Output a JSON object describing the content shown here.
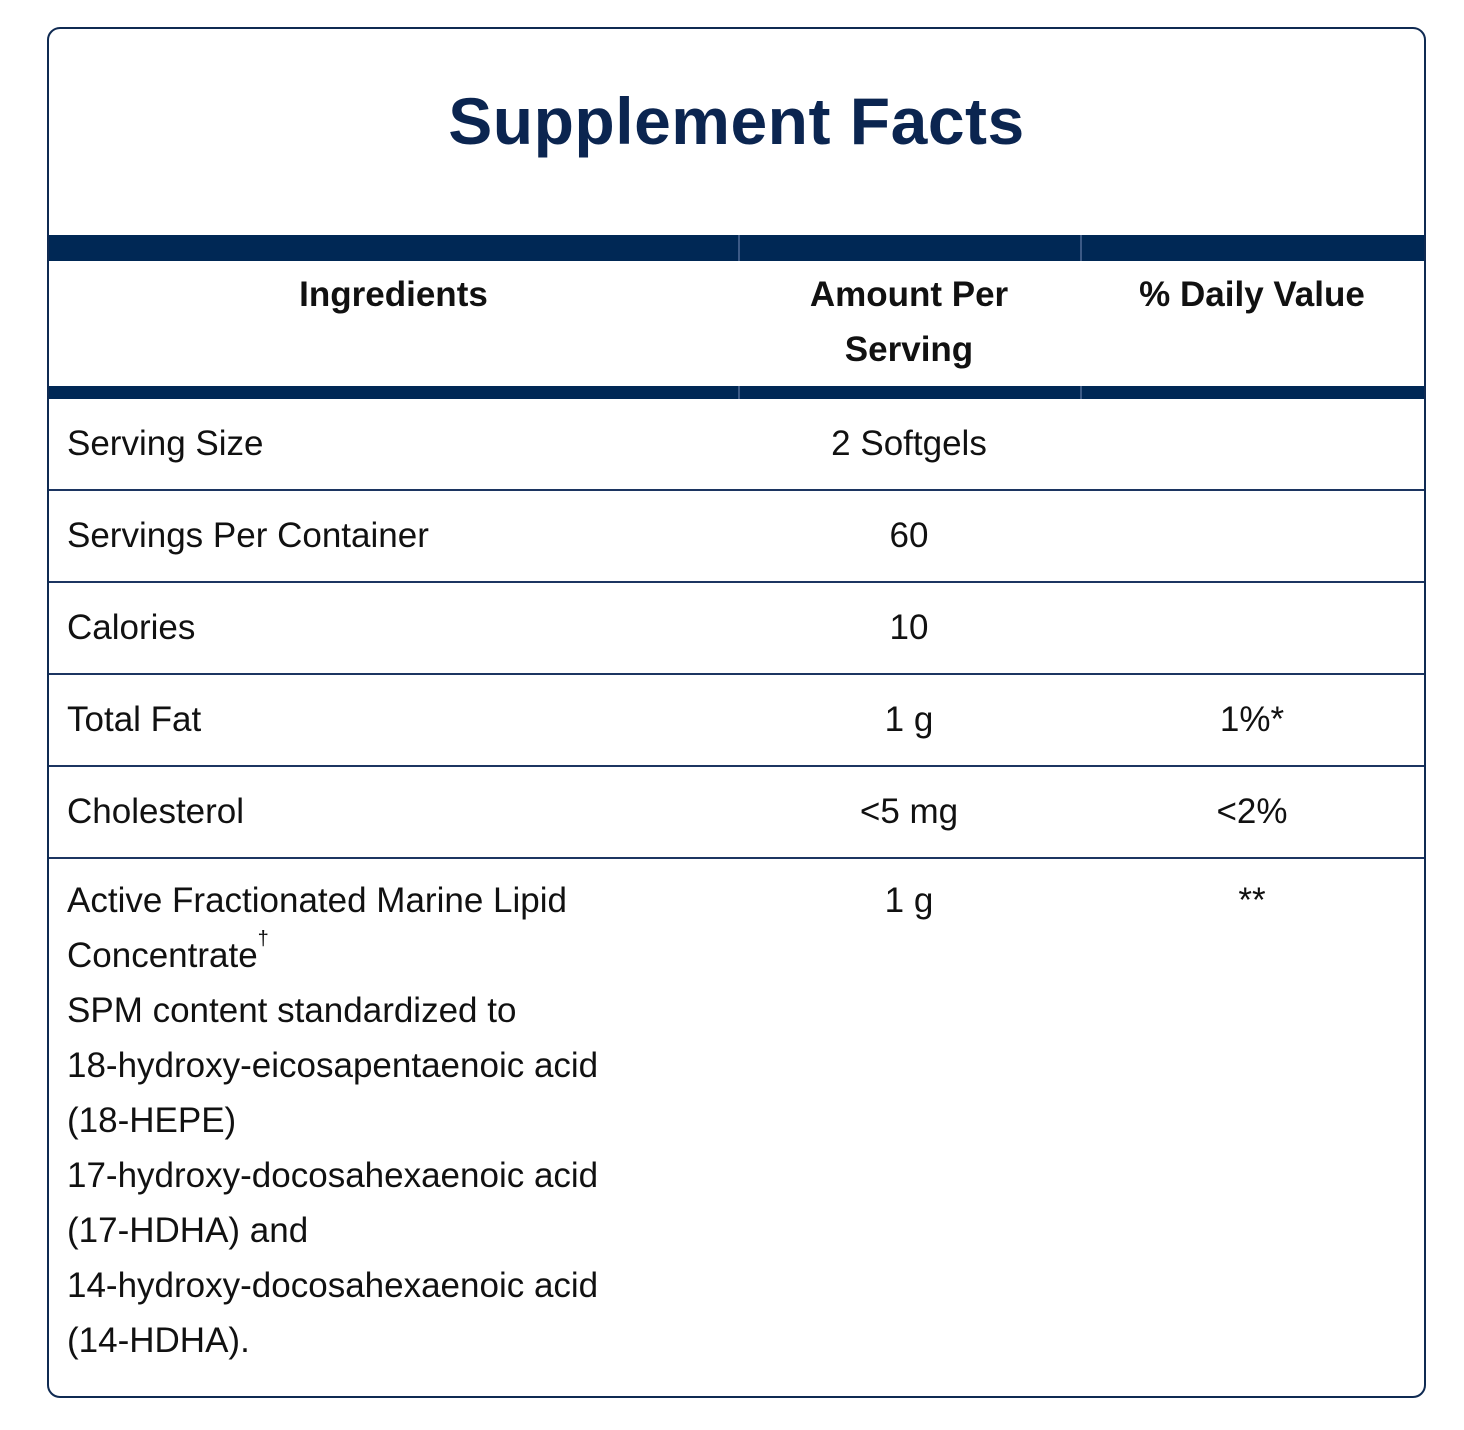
{
  "label": {
    "title": "Supplement Facts",
    "colors": {
      "title": "#0b2550",
      "bar": "#002855",
      "border": "#0f2a52",
      "text": "#111111"
    }
  },
  "table": {
    "headers": {
      "ingredients": "Ingredients",
      "amount_line1": "Amount Per",
      "amount_line2": "Serving",
      "daily_value": "% Daily Value"
    },
    "rows": [
      {
        "ingredient": "Serving Size",
        "amount": "2 Softgels",
        "dv": ""
      },
      {
        "ingredient": "Servings Per Container",
        "amount": "60",
        "dv": ""
      },
      {
        "ingredient": "Calories",
        "amount": "10",
        "dv": ""
      },
      {
        "ingredient": "Total Fat",
        "amount": "1 g",
        "dv": "1%*"
      },
      {
        "ingredient": "Cholesterol",
        "amount": "<5 mg",
        "dv": "<2%"
      }
    ],
    "active_row": {
      "lines": [
        "Active Fractionated Marine Lipid",
        "Concentrate",
        "SPM content standardized to",
        "18-hydroxy-eicosapentaenoic acid",
        "(18-HEPE)",
        "17-hydroxy-docosahexaenoic acid",
        "(17-HDHA) and",
        "14-hydroxy-docosahexaenoic acid",
        "(14-HDHA)."
      ],
      "superscript": "†",
      "amount": "1 g",
      "dv": "**"
    }
  }
}
